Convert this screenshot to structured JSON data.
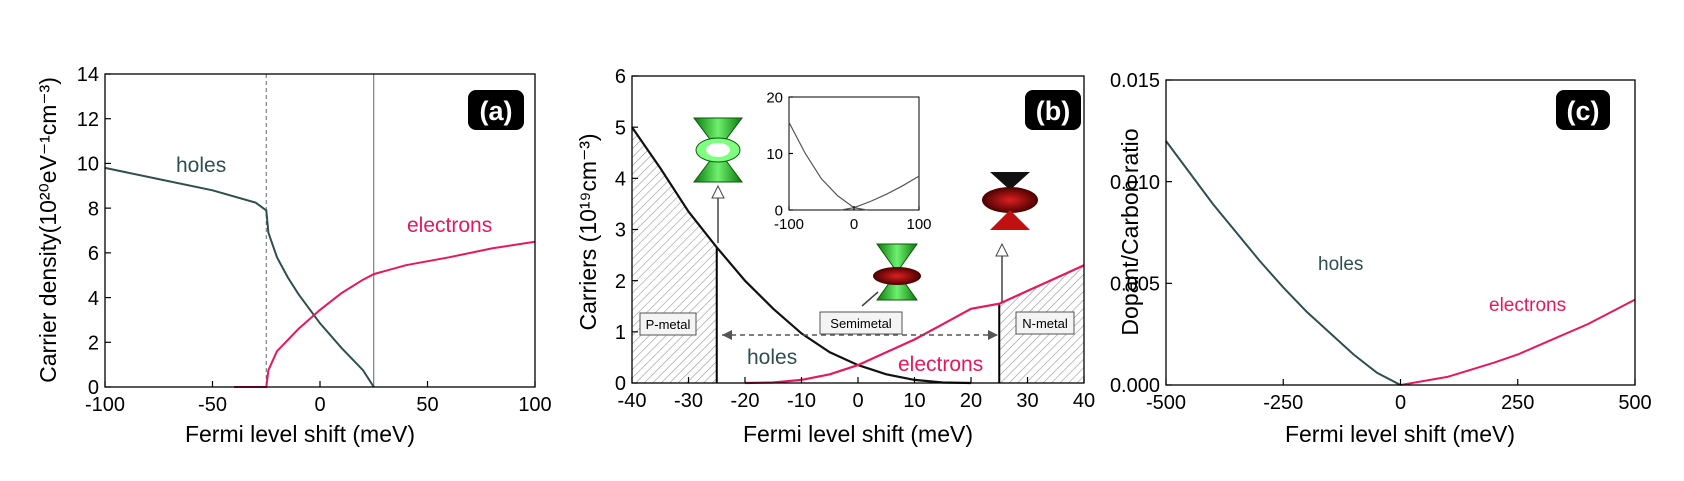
{
  "colors": {
    "holes": "#2f4f4f",
    "electrons": "#e8175d",
    "axis": "#000000",
    "guide": "#666666"
  },
  "panels": {
    "a": {
      "tag": "(a)",
      "xlabel": "Fermi level shift (meV)",
      "ylabel": "Carrier density(10²⁰eV⁻¹cm⁻³)",
      "xticks": [
        "-100",
        "-50",
        "0",
        "50",
        "100"
      ],
      "yticks": [
        "0",
        "2",
        "4",
        "6",
        "8",
        "10",
        "12",
        "14"
      ],
      "labels": {
        "holes": "holes",
        "electrons": "electrons"
      }
    },
    "b": {
      "tag": "(b)",
      "xlabel": "Fermi level shift (meV)",
      "ylabel": "Carriers (10¹⁹cm⁻³)",
      "xticks": [
        "-40",
        "-30",
        "-20",
        "-10",
        "0",
        "10",
        "20",
        "30",
        "40"
      ],
      "yticks": [
        "0",
        "1",
        "2",
        "3",
        "4",
        "5",
        "6"
      ],
      "labels": {
        "holes": "holes",
        "electrons": "electrons",
        "pmetal": "P-metal",
        "semimetal": "Semimetal",
        "nmetal": "N-metal"
      },
      "inset": {
        "xticks": [
          "-100",
          "0",
          "100"
        ],
        "yticks": [
          "0",
          "10",
          "20"
        ]
      }
    },
    "c": {
      "tag": "(c)",
      "xlabel": "Fermi level shift (meV)",
      "ylabel": "Dopant/Carbon ratio",
      "xticks": [
        "-500",
        "-250",
        "0",
        "250",
        "500"
      ],
      "yticks": [
        "0.000",
        "0.005",
        "0.010",
        "0.015"
      ],
      "labels": {
        "holes": "holes",
        "electrons": "electrons"
      }
    }
  },
  "chart_data": [
    {
      "type": "line",
      "xlabel": "Fermi level shift (meV)",
      "ylabel": "Carrier density(10²⁰eV⁻¹cm⁻³)",
      "xlim": [
        -100,
        100
      ],
      "ylim": [
        0,
        14
      ],
      "series": [
        {
          "name": "holes",
          "x": [
            -100,
            -75,
            -50,
            -30,
            -25,
            -24,
            -20,
            -15,
            -10,
            0,
            10,
            20,
            25
          ],
          "y": [
            9.8,
            9.3,
            8.8,
            8.25,
            7.9,
            6.9,
            5.8,
            4.9,
            4.15,
            2.85,
            1.75,
            0.75,
            0.0
          ]
        },
        {
          "name": "holes",
          "x": [
            -40,
            -25
          ],
          "y": [
            0,
            0
          ]
        },
        {
          "name": "electrons",
          "x": [
            -40,
            -25,
            -24,
            -20,
            -10,
            0,
            10,
            20,
            25,
            40,
            60,
            80,
            100
          ],
          "y": [
            0,
            0,
            0.75,
            1.6,
            2.6,
            3.45,
            4.2,
            4.8,
            5.05,
            5.45,
            5.8,
            6.2,
            6.5
          ]
        }
      ],
      "vlines": [
        -25,
        25
      ]
    },
    {
      "type": "line",
      "xlabel": "Fermi level shift (meV)",
      "ylabel": "Carriers (10¹⁹cm⁻³)",
      "xlim": [
        -40,
        40
      ],
      "ylim": [
        0,
        6
      ],
      "series": [
        {
          "name": "holes",
          "x": [
            -40,
            -35,
            -30,
            -25,
            -20,
            -15,
            -10,
            -5,
            0,
            5,
            10,
            15,
            20
          ],
          "y": [
            5.0,
            4.2,
            3.35,
            2.65,
            2.0,
            1.45,
            0.97,
            0.6,
            0.35,
            0.17,
            0.06,
            0.01,
            0.0
          ]
        },
        {
          "name": "electrons",
          "x": [
            -20,
            -15,
            -10,
            -5,
            0,
            5,
            10,
            15,
            20,
            25,
            30,
            35,
            40
          ],
          "y": [
            0.0,
            0.01,
            0.06,
            0.17,
            0.35,
            0.6,
            0.85,
            1.15,
            1.45,
            1.55,
            1.8,
            2.05,
            2.3
          ]
        }
      ],
      "inset": {
        "xlim": [
          -100,
          100
        ],
        "ylim": [
          0,
          20
        ],
        "series": [
          {
            "name": "holes",
            "x": [
              -100,
              -75,
              -50,
              -25,
              0,
              20
            ],
            "y": [
              15.5,
              10,
              5.5,
              2.5,
              0.4,
              0
            ]
          },
          {
            "name": "electrons",
            "x": [
              -20,
              0,
              25,
              50,
              75,
              100
            ],
            "y": [
              0,
              0.4,
              1.5,
              2.8,
              4.3,
              6.0
            ]
          }
        ]
      }
    },
    {
      "type": "line",
      "xlabel": "Fermi level shift (meV)",
      "ylabel": "Dopant/Carbon ratio",
      "xlim": [
        -500,
        500
      ],
      "ylim": [
        0,
        0.015
      ],
      "series": [
        {
          "name": "holes",
          "x": [
            -500,
            -400,
            -300,
            -250,
            -200,
            -100,
            -50,
            0
          ],
          "y": [
            0.012,
            0.0089,
            0.0061,
            0.0048,
            0.0036,
            0.0015,
            0.0006,
            0.0
          ]
        },
        {
          "name": "electrons",
          "x": [
            0,
            100,
            200,
            250,
            300,
            400,
            500
          ],
          "y": [
            0.0,
            0.0004,
            0.0011,
            0.0015,
            0.002,
            0.003,
            0.0042
          ]
        }
      ]
    }
  ]
}
